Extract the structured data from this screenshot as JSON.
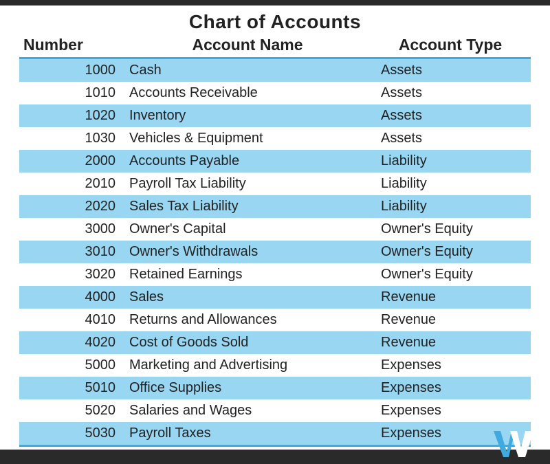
{
  "title": "Chart of Accounts",
  "table": {
    "type": "table",
    "columns": [
      "Number",
      "Account Name",
      "Account Type"
    ],
    "rows": [
      [
        "1000",
        "Cash",
        "Assets"
      ],
      [
        "1010",
        "Accounts Receivable",
        "Assets"
      ],
      [
        "1020",
        "Inventory",
        "Assets"
      ],
      [
        "1030",
        "Vehicles & Equipment",
        "Assets"
      ],
      [
        "2000",
        "Accounts Payable",
        "Liability"
      ],
      [
        "2010",
        "Payroll Tax Liability",
        "Liability"
      ],
      [
        "2020",
        "Sales Tax Liability",
        "Liability"
      ],
      [
        "3000",
        "Owner's Capital",
        "Owner's Equity"
      ],
      [
        "3010",
        "Owner's Withdrawals",
        "Owner's Equity"
      ],
      [
        "3020",
        "Retained Earnings",
        "Owner's Equity"
      ],
      [
        "4000",
        "Sales",
        "Revenue"
      ],
      [
        "4010",
        "Returns and Allowances",
        "Revenue"
      ],
      [
        "4020",
        "Cost of Goods Sold",
        "Revenue"
      ],
      [
        "5000",
        "Marketing and Advertising",
        "Expenses"
      ],
      [
        "5010",
        "Office Supplies",
        "Expenses"
      ],
      [
        "5020",
        "Salaries and Wages",
        "Expenses"
      ],
      [
        "5030",
        "Payroll Taxes",
        "Expenses"
      ]
    ],
    "accent_color": "#3fa9e0",
    "stripe_color": "#98d6f2",
    "background_color": "#ffffff",
    "text_color": "#222222",
    "title_fontsize": 28,
    "header_fontsize": 23,
    "cell_fontsize": 20,
    "column_align": [
      "right",
      "left",
      "left"
    ]
  },
  "bars": {
    "color": "#2a2a2a"
  },
  "logo": {
    "name": "w-logo",
    "primary_color": "#3fa9e0",
    "white": "#ffffff"
  }
}
